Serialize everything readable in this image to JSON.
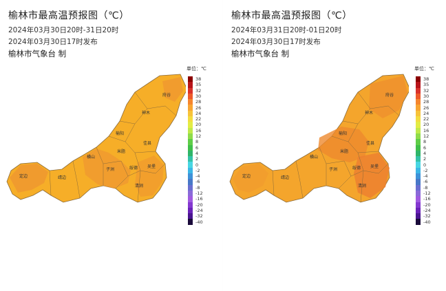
{
  "panels": [
    {
      "title": "榆林市最高温预报图（℃）",
      "valid_period": "2024年03月30日20时-31日20时",
      "issued": "2024年03月30日17时发布",
      "issuer": "榆林市气象台 制"
    },
    {
      "title": "榆林市最高温预报图（℃）",
      "valid_period": "2024年03月31日20时-01日20时",
      "issued": "2024年03月30日17时发布",
      "issuer": "榆林市气象台 制"
    }
  ],
  "legend": {
    "unit": "单位：℃",
    "levels": [
      {
        "label": "38",
        "color": "#8b0000"
      },
      {
        "label": "35",
        "color": "#b8141a"
      },
      {
        "label": "32",
        "color": "#d9322b"
      },
      {
        "label": "30",
        "color": "#ee5a2a"
      },
      {
        "label": "28",
        "color": "#f5862e"
      },
      {
        "label": "26",
        "color": "#f8a532"
      },
      {
        "label": "24",
        "color": "#f7c33a"
      },
      {
        "label": "22",
        "color": "#f3dc3f"
      },
      {
        "label": "20",
        "color": "#e3ec45"
      },
      {
        "label": "16",
        "color": "#bfe94a"
      },
      {
        "label": "12",
        "color": "#8fdc4a"
      },
      {
        "label": "8",
        "color": "#5fce48"
      },
      {
        "label": "6",
        "color": "#3fbf4a"
      },
      {
        "label": "4",
        "color": "#2fb56a"
      },
      {
        "label": "2",
        "color": "#34c2a8"
      },
      {
        "label": "0",
        "color": "#48d6e2"
      },
      {
        "label": "-2",
        "color": "#3cb6e6"
      },
      {
        "label": "-4",
        "color": "#3e92d8"
      },
      {
        "label": "-6",
        "color": "#4878c8"
      },
      {
        "label": "-8",
        "color": "#6a6ed0"
      },
      {
        "label": "-12",
        "color": "#8a6ad8"
      },
      {
        "label": "-16",
        "color": "#a05ae0"
      },
      {
        "label": "-20",
        "color": "#8438d0"
      },
      {
        "label": "-24",
        "color": "#6a22b8"
      },
      {
        "label": "-32",
        "color": "#4a1490"
      },
      {
        "label": "-40",
        "color": "#1a0a3a"
      }
    ]
  },
  "districts": [
    "府谷",
    "神木",
    "榆阳",
    "佳县",
    "横山",
    "米脂",
    "靖边",
    "子洲",
    "绥德",
    "吴堡",
    "定边",
    "清涧"
  ],
  "colors": {
    "map_base": "#f6ae28",
    "map_warm": "#f29a2c",
    "map_hot": "#ee8a2e",
    "border": "#8a6a3a"
  }
}
